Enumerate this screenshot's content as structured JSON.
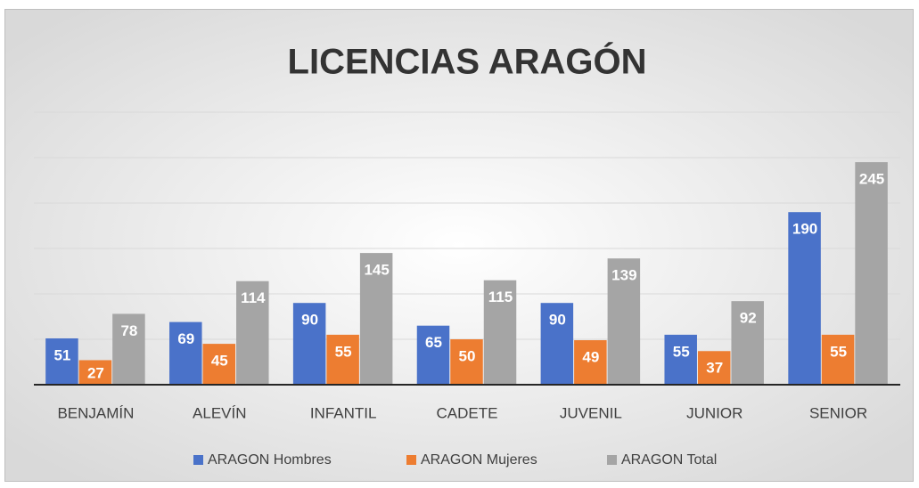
{
  "chart_data": {
    "type": "bar",
    "title": "LICENCIAS ARAGÓN",
    "categories": [
      "BENJAMÍN",
      "ALEVÍN",
      "INFANTIL",
      "CADETE",
      "JUVENIL",
      "JUNIOR",
      "SENIOR"
    ],
    "series": [
      {
        "name": "ARAGON Hombres",
        "color": "#4a72c9",
        "values": [
          51,
          69,
          90,
          65,
          90,
          55,
          190
        ]
      },
      {
        "name": "ARAGON Mujeres",
        "color": "#ed7d31",
        "values": [
          27,
          45,
          55,
          50,
          49,
          37,
          55
        ]
      },
      {
        "name": "ARAGON Total",
        "color": "#a5a5a5",
        "values": [
          78,
          114,
          145,
          115,
          139,
          92,
          245
        ]
      }
    ],
    "ylim": [
      0,
      300
    ],
    "yticks": [
      0,
      50,
      100,
      150,
      200,
      250,
      300
    ],
    "grid": true,
    "legend": "bottom"
  }
}
